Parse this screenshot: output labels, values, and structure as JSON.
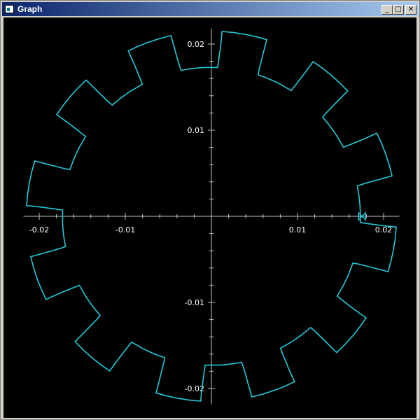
{
  "window": {
    "title": "Graph",
    "controls": {
      "minimize_icon": "minimize-icon",
      "maximize_icon": "maximize-icon",
      "close_icon": "close-icon"
    }
  },
  "colors": {
    "background": "#000000",
    "axis": "#c0c0c0",
    "curve": "#22c8d8",
    "tick_text": "#ffffff"
  },
  "chart_data": {
    "type": "line",
    "grid": false,
    "xlim": [
      -0.0215,
      0.0215
    ],
    "ylim": [
      -0.0215,
      0.0215
    ],
    "x_ticks": [
      {
        "value": -0.02,
        "label": "-0.02"
      },
      {
        "value": -0.01,
        "label": "-0.01"
      },
      {
        "value": 0.01,
        "label": "0.01"
      },
      {
        "value": 0.02,
        "label": "0.02"
      }
    ],
    "y_ticks": [
      {
        "value": 0.02,
        "label": "0.02"
      },
      {
        "value": 0.01,
        "label": "0.01"
      },
      {
        "value": -0.01,
        "label": "-0.01"
      },
      {
        "value": -0.02,
        "label": "-0.02"
      }
    ],
    "series": [
      {
        "shape": "gear-outline",
        "teeth": 12,
        "root_radius": 0.0173,
        "tip_radius": 0.0215,
        "start_marker": {
          "x": 0.0175,
          "y": 0.0
        }
      }
    ]
  }
}
